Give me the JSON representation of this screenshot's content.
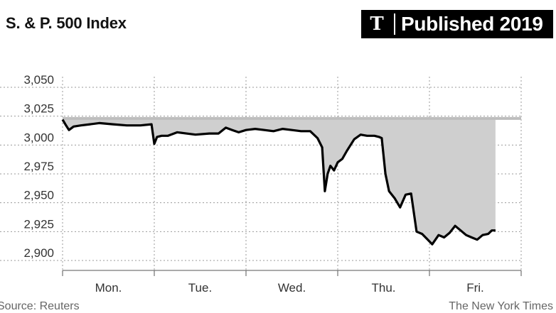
{
  "title": "S. & P. 500 Index",
  "badge": {
    "logo": "𝕿",
    "text": "Published 2019"
  },
  "source": "Source: Reuters",
  "credit": "The New York Times",
  "colors": {
    "line": "#000000",
    "fill": "#cfcfcf",
    "baseline": "#bdbdbd",
    "grid": "#999999"
  },
  "chart_data": {
    "type": "area",
    "title": "S. & P. 500 Index",
    "xlabel": "",
    "ylabel": "",
    "ylim": [
      2895,
      3055
    ],
    "yticks": [
      3050,
      3025,
      3000,
      2975,
      2950,
      2925,
      2900
    ],
    "ytick_labels": [
      "3,050",
      "3,025",
      "3,000",
      "2,975",
      "2,950",
      "2,925",
      "2,900"
    ],
    "categories": [
      "Mon.",
      "Tue.",
      "Wed.",
      "Thu.",
      "Fri."
    ],
    "baseline": 3023,
    "grid": true,
    "x_unit": "trading day (0 = Monday open, 5 = Friday close)",
    "series": [
      {
        "values": [
          [
            0.0,
            3022
          ],
          [
            0.03,
            3018
          ],
          [
            0.07,
            3013
          ],
          [
            0.12,
            3016
          ],
          [
            0.2,
            3017
          ],
          [
            0.3,
            3018
          ],
          [
            0.4,
            3019
          ],
          [
            0.55,
            3018
          ],
          [
            0.7,
            3017
          ],
          [
            0.85,
            3017
          ],
          [
            0.97,
            3018
          ],
          [
            1.0,
            3001
          ],
          [
            1.03,
            3007
          ],
          [
            1.08,
            3008
          ],
          [
            1.15,
            3008
          ],
          [
            1.25,
            3011
          ],
          [
            1.35,
            3010
          ],
          [
            1.45,
            3009
          ],
          [
            1.6,
            3010
          ],
          [
            1.7,
            3010
          ],
          [
            1.78,
            3015
          ],
          [
            1.85,
            3013
          ],
          [
            1.92,
            3011
          ],
          [
            2.0,
            3013
          ],
          [
            2.1,
            3014
          ],
          [
            2.2,
            3013
          ],
          [
            2.3,
            3012
          ],
          [
            2.4,
            3014
          ],
          [
            2.5,
            3013
          ],
          [
            2.6,
            3012
          ],
          [
            2.7,
            3012
          ],
          [
            2.78,
            3006
          ],
          [
            2.83,
            2998
          ],
          [
            2.86,
            2960
          ],
          [
            2.89,
            2975
          ],
          [
            2.92,
            2982
          ],
          [
            2.96,
            2978
          ],
          [
            3.0,
            2985
          ],
          [
            3.05,
            2988
          ],
          [
            3.1,
            2995
          ],
          [
            3.18,
            3005
          ],
          [
            3.25,
            3009
          ],
          [
            3.32,
            3008
          ],
          [
            3.4,
            3008
          ],
          [
            3.45,
            3007
          ],
          [
            3.48,
            3006
          ],
          [
            3.52,
            2975
          ],
          [
            3.56,
            2960
          ],
          [
            3.62,
            2954
          ],
          [
            3.68,
            2946
          ],
          [
            3.74,
            2957
          ],
          [
            3.8,
            2958
          ],
          [
            3.86,
            2925
          ],
          [
            3.92,
            2923
          ],
          [
            3.97,
            2919
          ],
          [
            4.03,
            2914
          ],
          [
            4.1,
            2922
          ],
          [
            4.16,
            2920
          ],
          [
            4.22,
            2924
          ],
          [
            4.28,
            2930
          ],
          [
            4.34,
            2926
          ],
          [
            4.4,
            2922
          ],
          [
            4.46,
            2920
          ],
          [
            4.52,
            2918
          ],
          [
            4.58,
            2922
          ],
          [
            4.64,
            2923
          ],
          [
            4.68,
            2926
          ],
          [
            4.72,
            2926
          ]
        ]
      }
    ]
  }
}
